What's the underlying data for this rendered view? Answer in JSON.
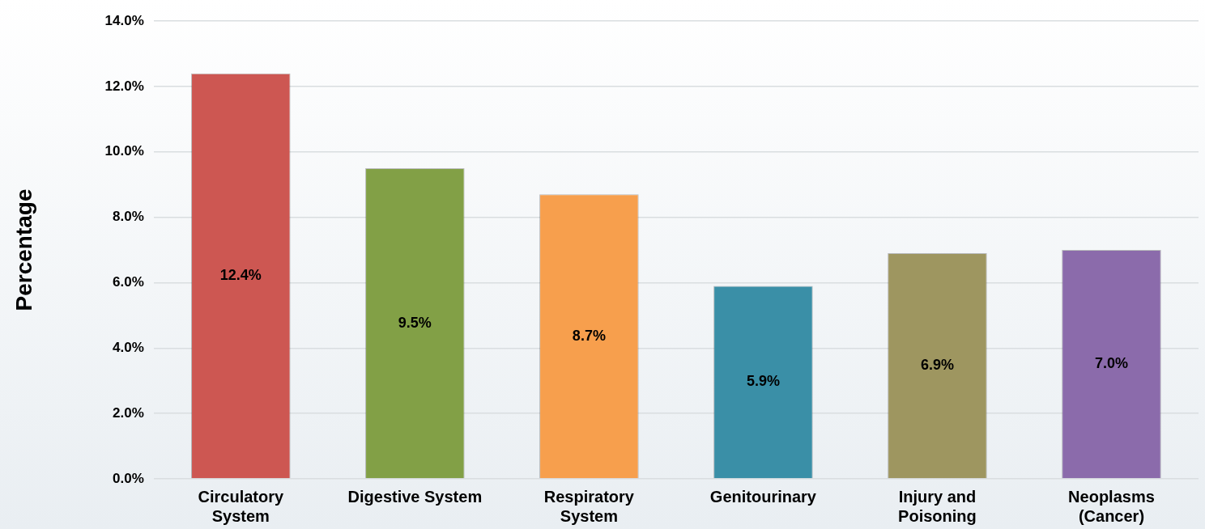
{
  "chart_data": {
    "type": "bar",
    "ylabel": "Percentage",
    "categories": [
      "Circulatory System",
      "Digestive System",
      "Respiratory System",
      "Genitourinary",
      "Injury and Poisoning",
      "Neoplasms (Cancer)"
    ],
    "values": [
      12.4,
      9.5,
      8.7,
      5.9,
      6.9,
      7.0
    ],
    "value_labels": [
      "12.4%",
      "9.5%",
      "8.7%",
      "5.9%",
      "6.9%",
      "7.0%"
    ],
    "colors": [
      "#cd5752",
      "#82a046",
      "#f79f4d",
      "#3a8fa7",
      "#9e9660",
      "#8b6bab"
    ],
    "ylim": [
      0,
      14
    ],
    "yticks": [
      {
        "value": 0,
        "label": "0.0%"
      },
      {
        "value": 2,
        "label": "2.0%"
      },
      {
        "value": 4,
        "label": "4.0%"
      },
      {
        "value": 6,
        "label": "6.0%"
      },
      {
        "value": 8,
        "label": "8.0%"
      },
      {
        "value": 10,
        "label": "10.0%"
      },
      {
        "value": 12,
        "label": "12.0%"
      },
      {
        "value": 14,
        "label": "14.0%"
      }
    ],
    "grid": "y",
    "legend": false
  }
}
